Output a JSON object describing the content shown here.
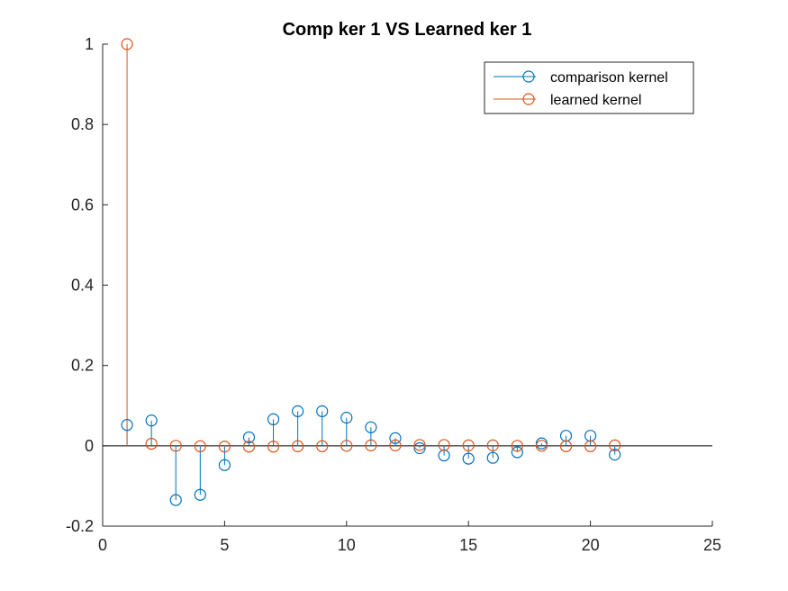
{
  "chart_data": {
    "type": "stem",
    "title": "Comp ker 1  VS Learned ker 1",
    "xlabel": "",
    "ylabel": "",
    "xlim": [
      0,
      25
    ],
    "ylim": [
      -0.2,
      1
    ],
    "xticks": [
      "0",
      "5",
      "10",
      "15",
      "20",
      "25"
    ],
    "yticks": [
      "-0.2",
      "0",
      "0.2",
      "0.4",
      "0.6",
      "0.8",
      "1"
    ],
    "grid": false,
    "legend_position": "top-right",
    "x": [
      1,
      2,
      3,
      4,
      5,
      6,
      7,
      8,
      9,
      10,
      11,
      12,
      13,
      14,
      15,
      16,
      17,
      18,
      19,
      20,
      21
    ],
    "series": [
      {
        "name": "comparison kernel",
        "color": "#0072BD",
        "values": [
          0.052,
          0.063,
          -0.135,
          -0.122,
          -0.048,
          0.021,
          0.066,
          0.086,
          0.086,
          0.07,
          0.046,
          0.019,
          -0.006,
          -0.024,
          -0.032,
          -0.03,
          -0.016,
          0.006,
          0.025,
          0.025,
          -0.022
        ]
      },
      {
        "name": "learned kernel",
        "color": "#D95319",
        "values": [
          1.0,
          0.005,
          0.0,
          -0.001,
          -0.002,
          -0.002,
          -0.002,
          -0.001,
          -0.001,
          0.0,
          0.001,
          0.001,
          0.002,
          0.002,
          0.001,
          0.001,
          0.0,
          0.0,
          -0.001,
          -0.001,
          0.001
        ]
      }
    ]
  }
}
